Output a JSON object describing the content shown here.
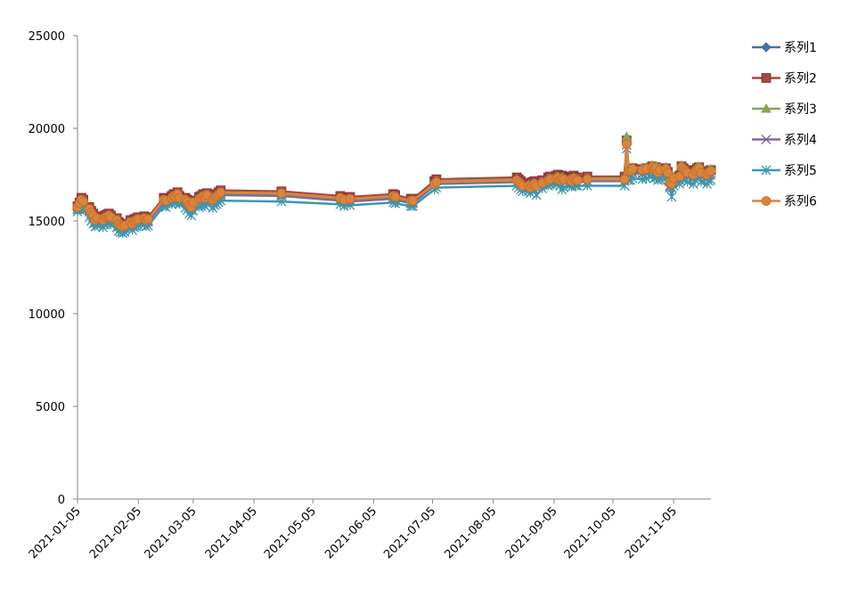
{
  "chart_data": {
    "type": "line",
    "title": "",
    "xlabel": "",
    "ylabel": "",
    "ylim": [
      0,
      25000
    ],
    "y_ticks": [
      "0",
      "5000",
      "10000",
      "15000",
      "20000",
      "25000"
    ],
    "x_tick_labels": [
      "2021-01-05",
      "2021-02-05",
      "2021-03-05",
      "2021-04-05",
      "2021-05-05",
      "2021-06-05",
      "2021-07-05",
      "2021-08-05",
      "2021-09-05",
      "2021-10-05",
      "2021-11-05"
    ],
    "x_tick_dates": [
      "2021-01-05",
      "2021-02-05",
      "2021-03-05",
      "2021-04-05",
      "2021-05-05",
      "2021-06-05",
      "2021-07-05",
      "2021-08-05",
      "2021-09-05",
      "2021-10-05",
      "2021-11-05"
    ],
    "xlim": [
      "2021-01-05",
      "2021-11-24"
    ],
    "grid": false,
    "legend_position": "right",
    "x": [
      "2021-01-05",
      "2021-01-06",
      "2021-01-07",
      "2021-01-08",
      "2021-01-11",
      "2021-01-12",
      "2021-01-13",
      "2021-01-14",
      "2021-01-15",
      "2021-01-18",
      "2021-01-19",
      "2021-01-20",
      "2021-01-21",
      "2021-01-22",
      "2021-01-25",
      "2021-01-26",
      "2021-01-27",
      "2021-01-28",
      "2021-01-29",
      "2021-02-01",
      "2021-02-02",
      "2021-02-03",
      "2021-02-04",
      "2021-02-05",
      "2021-02-08",
      "2021-02-09",
      "2021-02-10",
      "2021-02-18",
      "2021-02-19",
      "2021-02-22",
      "2021-02-23",
      "2021-02-24",
      "2021-02-25",
      "2021-02-26",
      "2021-03-01",
      "2021-03-02",
      "2021-03-03",
      "2021-03-04",
      "2021-03-05",
      "2021-03-08",
      "2021-03-09",
      "2021-03-10",
      "2021-03-11",
      "2021-03-12",
      "2021-03-15",
      "2021-03-16",
      "2021-03-17",
      "2021-03-18",
      "2021-03-19",
      "2021-04-19",
      "2021-05-19",
      "2021-05-21",
      "2021-05-24",
      "2021-06-15",
      "2021-06-16",
      "2021-06-24",
      "2021-06-25",
      "2021-07-06",
      "2021-07-07",
      "2021-08-17",
      "2021-08-18",
      "2021-08-19",
      "2021-08-20",
      "2021-08-23",
      "2021-08-24",
      "2021-08-25",
      "2021-08-26",
      "2021-08-27",
      "2021-08-30",
      "2021-09-02",
      "2021-09-03",
      "2021-09-06",
      "2021-09-07",
      "2021-09-08",
      "2021-09-09",
      "2021-09-10",
      "2021-09-13",
      "2021-09-14",
      "2021-09-15",
      "2021-09-16",
      "2021-09-17",
      "2021-09-22",
      "2021-10-11",
      "2021-10-12",
      "2021-10-13",
      "2021-10-14",
      "2021-10-15",
      "2021-10-20",
      "2021-10-22",
      "2021-10-25",
      "2021-10-26",
      "2021-10-27",
      "2021-10-28",
      "2021-10-29",
      "2021-11-01",
      "2021-11-02",
      "2021-11-03",
      "2021-11-04",
      "2021-11-05",
      "2021-11-08",
      "2021-11-09",
      "2021-11-10",
      "2021-11-11",
      "2021-11-12",
      "2021-11-15",
      "2021-11-16",
      "2021-11-17",
      "2021-11-18",
      "2021-11-19",
      "2021-11-22",
      "2021-11-23",
      "2021-11-24"
    ],
    "series": [
      {
        "name": "系列1",
        "color": "#4572A7",
        "marker": "diamond",
        "values": [
          15700,
          15900,
          16100,
          16000,
          15600,
          15400,
          15250,
          15000,
          15100,
          15000,
          15150,
          15200,
          15250,
          15150,
          15000,
          14800,
          14700,
          14650,
          14700,
          14900,
          14800,
          14950,
          15000,
          15050,
          15100,
          15000,
          15050,
          16100,
          16050,
          16200,
          16300,
          16250,
          16400,
          16200,
          16100,
          16000,
          15800,
          15700,
          15950,
          16150,
          16200,
          16300,
          16200,
          16350,
          16100,
          16250,
          16300,
          16400,
          16500,
          16450,
          16200,
          16100,
          16150,
          16300,
          16250,
          16050,
          16050,
          17000,
          17100,
          17200,
          17100,
          17000,
          16900,
          16900,
          16800,
          16950,
          17000,
          16900,
          17050,
          17200,
          17250,
          17300,
          17350,
          17200,
          17300,
          17250,
          17200,
          17150,
          17300,
          17200,
          17200,
          17250,
          17250,
          19200,
          17600,
          17600,
          17700,
          17650,
          17700,
          17800,
          17700,
          17750,
          17500,
          17650,
          17700,
          17500,
          17000,
          16900,
          17200,
          17300,
          17800,
          17700,
          17600,
          17500,
          17400,
          17600,
          17700,
          17750,
          17500,
          17400,
          17550,
          17600
        ]
      },
      {
        "name": "系列2",
        "color": "#AA4643",
        "marker": "square",
        "values": [
          15800,
          16000,
          16250,
          16150,
          15750,
          15550,
          15400,
          15150,
          15250,
          15150,
          15300,
          15350,
          15400,
          15300,
          15150,
          14950,
          14850,
          14800,
          14850,
          15050,
          14950,
          15100,
          15150,
          15200,
          15250,
          15150,
          15200,
          16250,
          16200,
          16350,
          16450,
          16400,
          16550,
          16350,
          16250,
          16150,
          15950,
          15850,
          16100,
          16300,
          16350,
          16450,
          16350,
          16500,
          16250,
          16400,
          16450,
          16550,
          16650,
          16600,
          16350,
          16250,
          16300,
          16450,
          16400,
          16200,
          16200,
          17150,
          17250,
          17350,
          17250,
          17150,
          17050,
          17050,
          16950,
          17100,
          17150,
          17050,
          17200,
          17350,
          17400,
          17450,
          17500,
          17350,
          17450,
          17400,
          17350,
          17300,
          17450,
          17350,
          17350,
          17400,
          17400,
          19350,
          17750,
          17750,
          17850,
          17800,
          17850,
          17950,
          17850,
          17900,
          17650,
          17800,
          17850,
          17650,
          17150,
          17050,
          17350,
          17450,
          17950,
          17850,
          17750,
          17650,
          17550,
          17750,
          17850,
          17900,
          17650,
          17550,
          17700,
          17750
        ]
      },
      {
        "name": "系列3",
        "color": "#89A54E",
        "marker": "triangle",
        "values": [
          15600,
          15800,
          16050,
          15950,
          15550,
          15350,
          15200,
          14950,
          15050,
          14950,
          15100,
          15150,
          15200,
          15100,
          14950,
          14750,
          14650,
          14600,
          14650,
          14850,
          14750,
          14900,
          14950,
          15000,
          15050,
          14950,
          15000,
          16050,
          16000,
          16150,
          16250,
          16200,
          16350,
          16150,
          16050,
          15950,
          15750,
          15650,
          15900,
          16100,
          16150,
          16250,
          16150,
          16300,
          16050,
          16200,
          16250,
          16350,
          16450,
          16400,
          16150,
          16050,
          16100,
          16250,
          16200,
          16000,
          16000,
          17050,
          17150,
          17250,
          17150,
          17050,
          16950,
          16950,
          16850,
          17000,
          17050,
          16950,
          17100,
          17250,
          17300,
          17350,
          17400,
          17250,
          17350,
          17300,
          17250,
          17200,
          17350,
          17250,
          17250,
          17300,
          17300,
          19550,
          17800,
          17800,
          17900,
          17850,
          17900,
          18000,
          17900,
          17950,
          17700,
          17850,
          17900,
          17700,
          17200,
          17100,
          17400,
          17500,
          18000,
          17900,
          17800,
          17700,
          17600,
          17800,
          17900,
          17950,
          17700,
          17600,
          17750,
          17800
        ]
      },
      {
        "name": "系列4",
        "color": "#80699B",
        "marker": "x",
        "values": [
          15650,
          15850,
          16000,
          15900,
          15500,
          15300,
          15150,
          14900,
          15000,
          14900,
          15050,
          15100,
          15150,
          15050,
          14900,
          14700,
          14600,
          14550,
          14600,
          14800,
          14700,
          14850,
          14900,
          14950,
          15000,
          14900,
          14950,
          16000,
          15950,
          16100,
          16200,
          16150,
          16300,
          16100,
          16000,
          15900,
          15700,
          15600,
          15850,
          16050,
          16100,
          16200,
          16100,
          16250,
          16000,
          16150,
          16200,
          16300,
          16400,
          16350,
          16100,
          16000,
          16050,
          16200,
          16150,
          15950,
          15950,
          16900,
          17000,
          17100,
          17000,
          16900,
          16800,
          16800,
          16700,
          16850,
          16900,
          16800,
          16950,
          17100,
          17150,
          17200,
          17250,
          17100,
          17200,
          17150,
          17100,
          17050,
          17200,
          17100,
          17100,
          17150,
          17150,
          19100,
          17500,
          17500,
          17600,
          17550,
          17600,
          17700,
          17600,
          17650,
          17400,
          17550,
          17600,
          17400,
          16900,
          16800,
          17100,
          17200,
          17700,
          17600,
          17500,
          17400,
          17300,
          17500,
          17600,
          17650,
          17400,
          17300,
          17450,
          17500
        ]
      },
      {
        "name": "系列5",
        "color": "#3D96AE",
        "marker": "asterisk",
        "values": [
          15500,
          15600,
          15700,
          15600,
          15200,
          15000,
          14850,
          14700,
          14750,
          14650,
          14800,
          14850,
          14900,
          14800,
          14650,
          14450,
          14400,
          14350,
          14400,
          14600,
          14500,
          14650,
          14700,
          14750,
          14800,
          14700,
          14750,
          15800,
          15750,
          15900,
          16000,
          15950,
          16100,
          15900,
          15700,
          15600,
          15400,
          15300,
          15550,
          15750,
          15800,
          15900,
          15800,
          15950,
          15700,
          15850,
          15900,
          16000,
          16100,
          16050,
          15900,
          15800,
          15850,
          16000,
          15950,
          15800,
          15800,
          16700,
          16800,
          16900,
          16800,
          16700,
          16600,
          16600,
          16500,
          16650,
          16700,
          16400,
          16750,
          16900,
          16950,
          17000,
          17050,
          16900,
          16700,
          16800,
          16900,
          16850,
          17000,
          16900,
          16900,
          16900,
          16900,
          18900,
          17200,
          17200,
          17300,
          17250,
          17300,
          17400,
          17300,
          17350,
          17200,
          17250,
          17300,
          17200,
          16800,
          16300,
          16900,
          17000,
          17400,
          17300,
          17200,
          17100,
          17000,
          17200,
          17300,
          17350,
          17100,
          17000,
          17150,
          17200
        ]
      },
      {
        "name": "系列6",
        "color": "#DB843D",
        "marker": "circle",
        "values": [
          15750,
          15950,
          16150,
          16050,
          15650,
          15450,
          15300,
          15050,
          15150,
          15050,
          15200,
          15250,
          15300,
          15200,
          15050,
          14850,
          14750,
          14700,
          14750,
          14950,
          14850,
          15000,
          15050,
          15100,
          15150,
          15050,
          15100,
          16150,
          16100,
          16250,
          16350,
          16300,
          16450,
          16250,
          16150,
          16050,
          15850,
          15750,
          16000,
          16200,
          16250,
          16350,
          16250,
          16400,
          16150,
          16300,
          16350,
          16450,
          16550,
          16500,
          16250,
          16150,
          16200,
          16350,
          16300,
          16100,
          16100,
          17000,
          17100,
          17200,
          17100,
          17000,
          16900,
          16900,
          16800,
          16950,
          17000,
          16900,
          17050,
          17200,
          17250,
          17300,
          17350,
          17200,
          17300,
          17250,
          17200,
          17150,
          17300,
          17200,
          17200,
          17250,
          17250,
          19150,
          17700,
          17700,
          17800,
          17750,
          17800,
          17900,
          17800,
          17850,
          17600,
          17750,
          17800,
          17600,
          17100,
          17000,
          17300,
          17400,
          17900,
          17800,
          17700,
          17600,
          17500,
          17700,
          17800,
          17850,
          17600,
          17500,
          17650,
          17700
        ]
      }
    ]
  }
}
